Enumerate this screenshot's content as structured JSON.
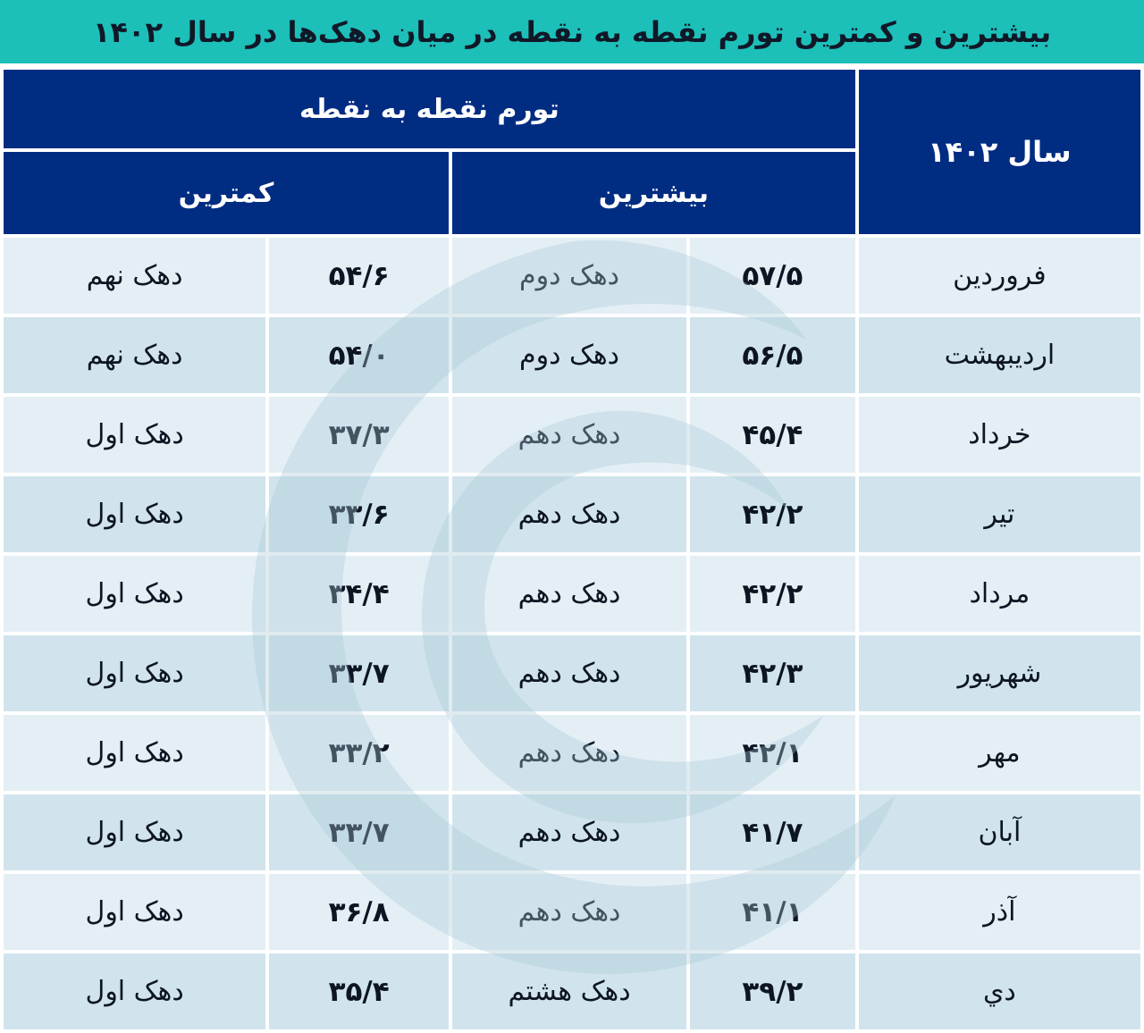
{
  "title": "بیشترین و کمترین تورم نقطه به نقطه در میان دهک‌ها در سال ۱۴۰۲",
  "header": {
    "year_label": "سال ۱۴۰۲",
    "group_label": "تورم نقطه به نقطه",
    "max_label": "بیشترین",
    "min_label": "کمترین"
  },
  "rows": [
    {
      "month": "فروردین",
      "max_value": "۵۷/۵",
      "max_decile": "دهک دوم",
      "min_value": "۵۴/۶",
      "min_decile": "دهک نهم"
    },
    {
      "month": "اردیبهشت",
      "max_value": "۵۶/۵",
      "max_decile": "دهک دوم",
      "min_value": "۵۴/۰",
      "min_decile": "دهک نهم"
    },
    {
      "month": "خرداد",
      "max_value": "۴۵/۴",
      "max_decile": "دهک دهم",
      "min_value": "۳۷/۳",
      "min_decile": "دهک اول"
    },
    {
      "month": "تیر",
      "max_value": "۴۲/۲",
      "max_decile": "دهک دهم",
      "min_value": "۳۳/۶",
      "min_decile": "دهک اول"
    },
    {
      "month": "مرداد",
      "max_value": "۴۲/۲",
      "max_decile": "دهک دهم",
      "min_value": "۳۴/۴",
      "min_decile": "دهک اول"
    },
    {
      "month": "شهریور",
      "max_value": "۴۲/۳",
      "max_decile": "دهک دهم",
      "min_value": "۳۳/۷",
      "min_decile": "دهک اول"
    },
    {
      "month": "مهر",
      "max_value": "۴۲/۱",
      "max_decile": "دهک دهم",
      "min_value": "۳۳/۲",
      "min_decile": "دهک اول"
    },
    {
      "month": "آبان",
      "max_value": "۴۱/۷",
      "max_decile": "دهک دهم",
      "min_value": "۳۳/۷",
      "min_decile": "دهک اول"
    },
    {
      "month": "آذر",
      "max_value": "۴۱/۱",
      "max_decile": "دهک دهم",
      "min_value": "۳۶/۸",
      "min_decile": "دهک اول"
    },
    {
      "month": "دي",
      "max_value": "۳۹/۲",
      "max_decile": "دهک هشتم",
      "min_value": "۳۵/۴",
      "min_decile": "دهک اول"
    }
  ],
  "colors": {
    "title_bg": "#1dbfb9",
    "header_bg": "#002c82",
    "row_light": "#e2eef4",
    "row_dark": "#cee2ec"
  }
}
